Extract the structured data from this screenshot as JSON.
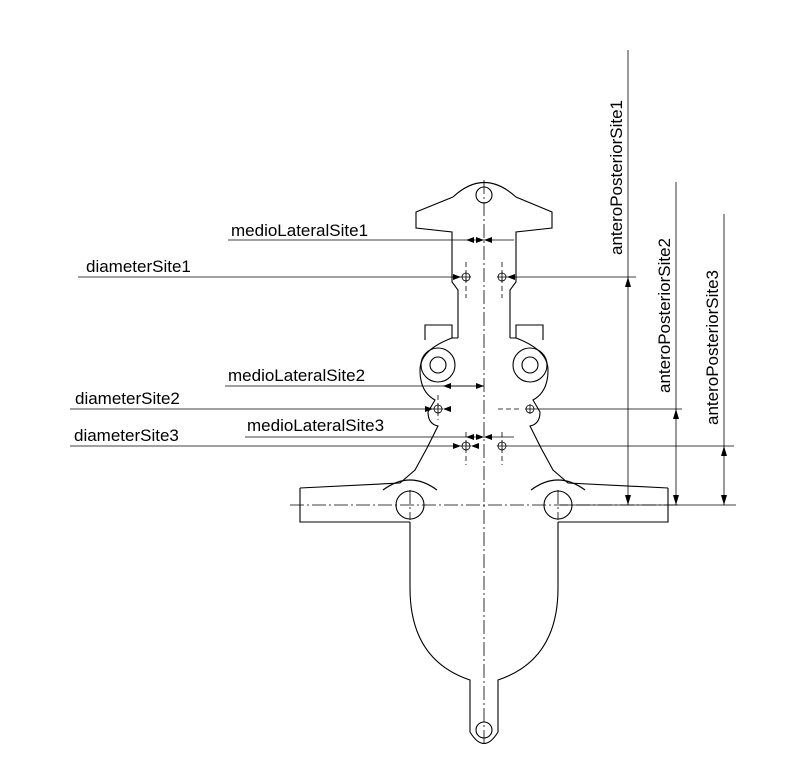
{
  "labels": {
    "medio_lateral_site1": "medioLateralSite1",
    "medio_lateral_site2": "medioLateralSite2",
    "medio_lateral_site3": "medioLateralSite3",
    "diameter_site1": "diameterSite1",
    "diameter_site2": "diameterSite2",
    "diameter_site3": "diameterSite3",
    "antero_posterior_site1": "anteroPosteriorSite1",
    "antero_posterior_site2": "anteroPosteriorSite2",
    "antero_posterior_site3": "anteroPosteriorSite3"
  }
}
